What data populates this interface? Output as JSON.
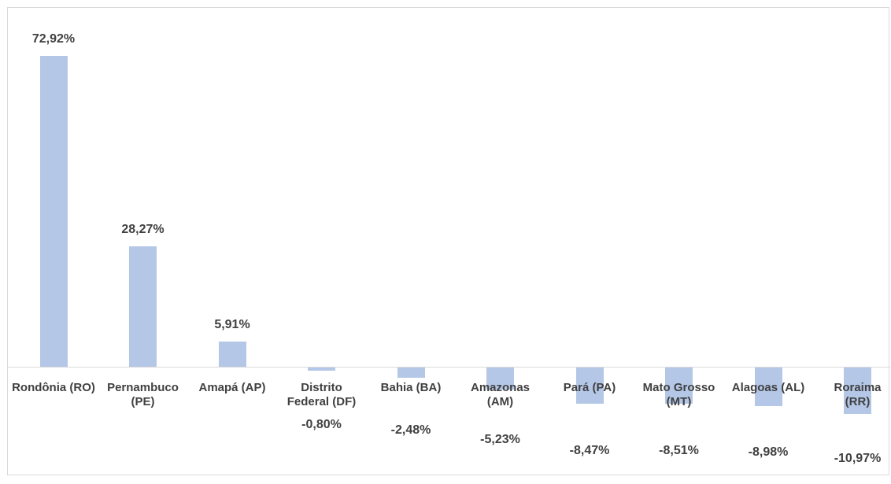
{
  "chart_data": {
    "type": "bar",
    "categories": [
      "Rondônia (RO)",
      "Pernambuco (PE)",
      "Amapá (AP)",
      "Distrito Federal (DF)",
      "Bahia (BA)",
      "Amazonas (AM)",
      "Pará (PA)",
      "Mato Grosso (MT)",
      "Alagoas (AL)",
      "Roraima (RR)"
    ],
    "values": [
      72.92,
      28.27,
      5.91,
      -0.8,
      -2.48,
      -5.23,
      -8.47,
      -8.51,
      -8.98,
      -10.97
    ],
    "value_labels": [
      "72,92%",
      "28,27%",
      "5,91%",
      "-0,80%",
      "-2,48%",
      "-5,23%",
      "-8,47%",
      "-8,51%",
      "-8,98%",
      "-10,97%"
    ],
    "color": "#b4c7e7"
  }
}
